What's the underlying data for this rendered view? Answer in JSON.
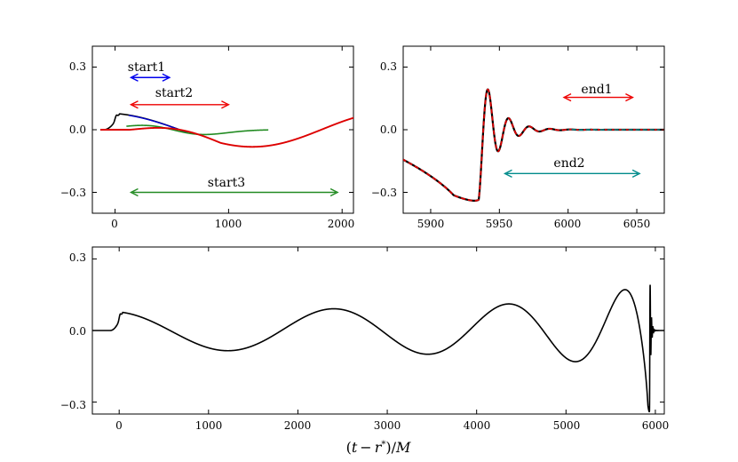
{
  "chart_data": [
    {
      "type": "line",
      "panel": "top-left",
      "xlim": [
        -200,
        2100
      ],
      "ylim": [
        -0.4,
        0.4
      ],
      "xticks": [
        "0",
        "1000",
        "2000"
      ],
      "yticks": [
        "0.3",
        "0.0",
        "−0.3"
      ],
      "series": [
        {
          "color": "#000000",
          "description_values": {
            "x_range": [
              -100,
              100
            ],
            "amplitude": 0.08
          }
        },
        {
          "color": "#0000cc",
          "description_values": {
            "x_range": [
              100,
              640
            ],
            "amplitude": 0.08
          }
        },
        {
          "color": "#228b22",
          "description_values": {
            "x_range": [
              100,
              1350
            ],
            "amplitude_max": 0.05
          }
        },
        {
          "color": "#dd0000",
          "description_values": {
            "x_range": [
              -100,
              2100
            ],
            "amplitude": 0.08
          }
        }
      ],
      "annotations": [
        {
          "text": "start1",
          "x1": 140,
          "x2": 480,
          "y": 0.25,
          "color": "#0000ee"
        },
        {
          "text": "start2",
          "x1": 140,
          "x2": 1000,
          "y": 0.12,
          "color": "#ee0000"
        },
        {
          "text": "start3",
          "x1": 140,
          "x2": 1960,
          "y": -0.3,
          "color": "#228b22"
        }
      ]
    },
    {
      "type": "line",
      "panel": "top-right",
      "xlim": [
        5880,
        6070
      ],
      "ylim": [
        -0.4,
        0.4
      ],
      "xticks": [
        "5900",
        "5950",
        "6000",
        "6050"
      ],
      "yticks": [
        "0.3",
        "0.0",
        "−0.3"
      ],
      "series": [
        {
          "color": "#000000",
          "description_values": {
            "peak_time": 5935,
            "peak_amplitude": 0.34
          }
        },
        {
          "color": "#dd0000",
          "dashed": true
        },
        {
          "color": "#008b8b",
          "dashed": true
        }
      ],
      "annotations": [
        {
          "text": "end1",
          "x1": 5997,
          "x2": 6047,
          "y": 0.155,
          "color": "#ee0000"
        },
        {
          "text": "end2",
          "x1": 5954,
          "x2": 6052,
          "y": -0.21,
          "color": "#008b8b"
        }
      ]
    },
    {
      "type": "line",
      "panel": "bottom",
      "xlim": [
        -300,
        6100
      ],
      "ylim": [
        -0.35,
        0.35
      ],
      "xticks": [
        "0",
        "1000",
        "2000",
        "3000",
        "4000",
        "5000",
        "6000"
      ],
      "yticks": [
        "0.3",
        "0.0",
        "−0.3"
      ],
      "xlabel": "(t − r*)/M",
      "series": [
        {
          "color": "#000000",
          "description_values": {
            "x_range": [
              -100,
              6070
            ],
            "early_amplitude": 0.08,
            "peak_time": 5935,
            "peak_amplitude": 0.32
          }
        }
      ]
    }
  ],
  "xlabel_parts": {
    "open": "(",
    "t": "t",
    "minus": "−",
    "r": "r",
    "star": "*",
    "close": ")/",
    "M": "M"
  }
}
